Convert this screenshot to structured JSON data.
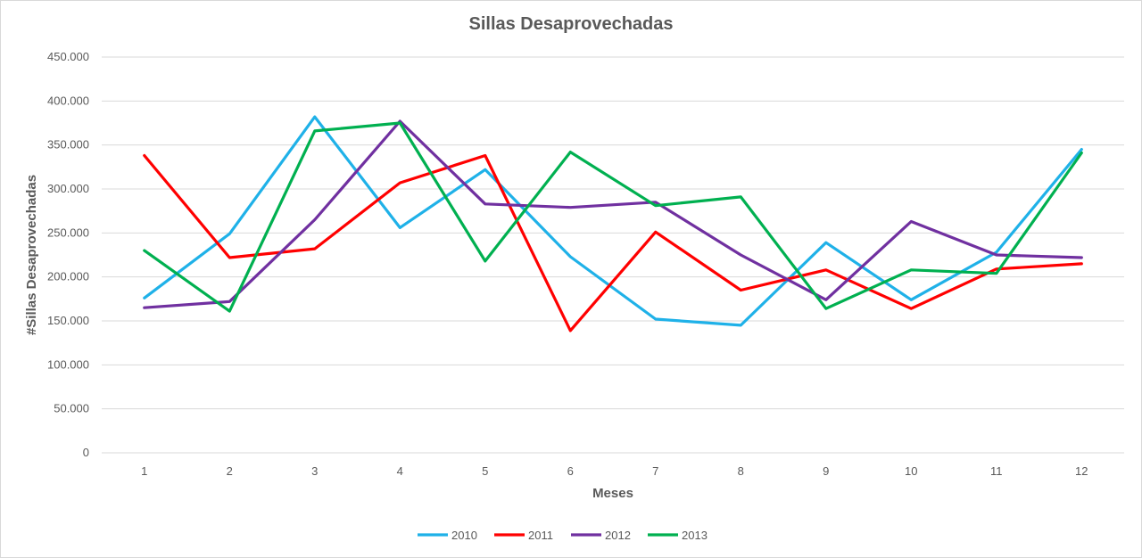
{
  "chart_data": {
    "type": "line",
    "title": "Sillas Desaprovechadas",
    "xlabel": "Meses",
    "ylabel": "#Sillas Desaprovechadas",
    "categories": [
      "1",
      "2",
      "3",
      "4",
      "5",
      "6",
      "7",
      "8",
      "9",
      "10",
      "11",
      "12"
    ],
    "y_tick_labels": [
      "0",
      "50.000",
      "100.000",
      "150.000",
      "200.000",
      "250.000",
      "300.000",
      "350.000",
      "400.000",
      "450.000"
    ],
    "ylim": [
      0,
      450000
    ],
    "grid": true,
    "legend_position": "bottom",
    "series": [
      {
        "name": "2010",
        "color": "#1fb1e8",
        "values": [
          176000,
          249000,
          382000,
          256000,
          322000,
          223000,
          152000,
          145000,
          239000,
          174000,
          228000,
          345000
        ]
      },
      {
        "name": "2011",
        "color": "#ff0000",
        "values": [
          338000,
          222000,
          232000,
          307000,
          338000,
          139000,
          251000,
          185000,
          208000,
          164000,
          209000,
          215000
        ]
      },
      {
        "name": "2012",
        "color": "#7030a0",
        "values": [
          165000,
          172000,
          265000,
          377000,
          283000,
          279000,
          285000,
          225000,
          174000,
          263000,
          225000,
          222000
        ]
      },
      {
        "name": "2013",
        "color": "#00b050",
        "values": [
          230000,
          161000,
          366000,
          375000,
          218000,
          342000,
          281000,
          291000,
          164000,
          208000,
          204000,
          341000
        ]
      }
    ]
  }
}
